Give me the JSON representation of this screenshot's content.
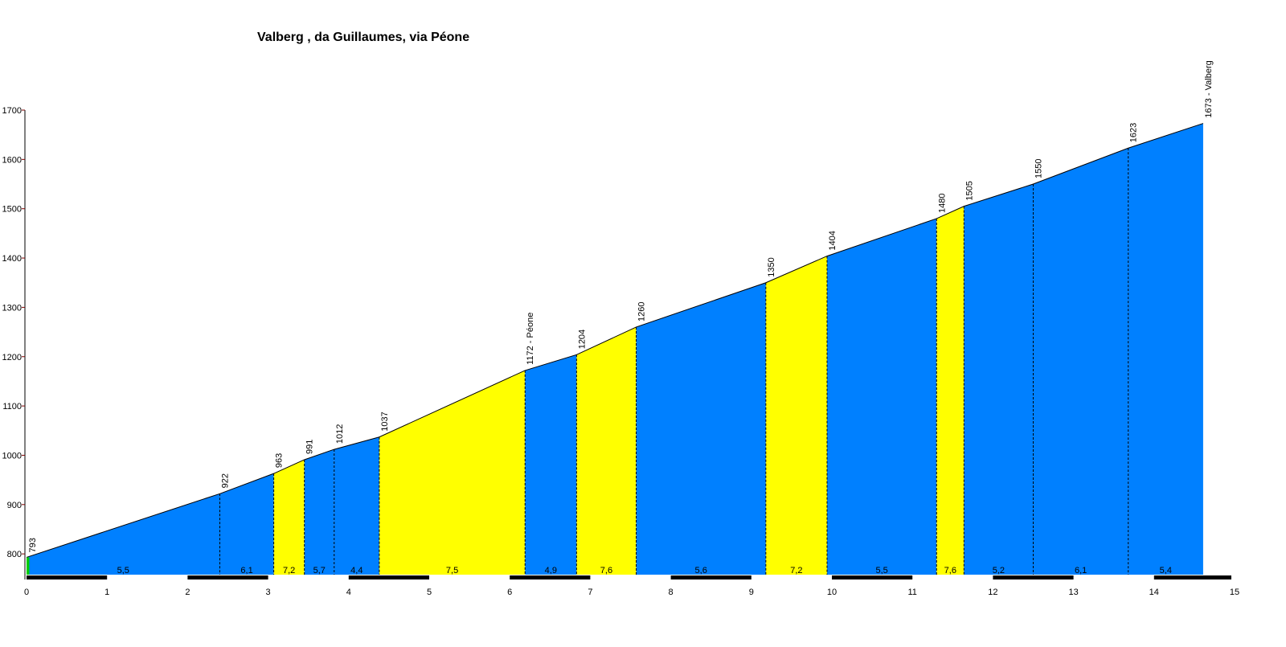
{
  "chart_data": {
    "type": "area",
    "title": "Valberg , da Guillaumes, via Péone",
    "xlabel": "",
    "ylabel": "",
    "xlim": [
      0,
      15
    ],
    "ylim": [
      750,
      1700
    ],
    "x_ticks": [
      0,
      1,
      2,
      3,
      4,
      5,
      6,
      7,
      8,
      9,
      10,
      11,
      12,
      13,
      14,
      15
    ],
    "y_ticks": [
      800,
      900,
      1000,
      1100,
      1200,
      1300,
      1400,
      1500,
      1600,
      1700
    ],
    "start": {
      "x": 0,
      "elevation": 793,
      "label": "793"
    },
    "points": [
      {
        "x": 0,
        "elevation": 793
      },
      {
        "x": 2.4,
        "elevation": 922
      },
      {
        "x": 3.07,
        "elevation": 963
      },
      {
        "x": 3.45,
        "elevation": 991
      },
      {
        "x": 3.82,
        "elevation": 1012
      },
      {
        "x": 4.38,
        "elevation": 1037
      },
      {
        "x": 6.19,
        "elevation": 1172
      },
      {
        "x": 6.83,
        "elevation": 1204
      },
      {
        "x": 7.57,
        "elevation": 1260
      },
      {
        "x": 9.18,
        "elevation": 1350
      },
      {
        "x": 9.94,
        "elevation": 1404
      },
      {
        "x": 11.3,
        "elevation": 1480
      },
      {
        "x": 11.64,
        "elevation": 1505
      },
      {
        "x": 12.5,
        "elevation": 1550
      },
      {
        "x": 13.68,
        "elevation": 1623
      },
      {
        "x": 14.61,
        "elevation": 1673
      }
    ],
    "waypoint_labels": [
      "922",
      "963",
      "991",
      "1012",
      "1037",
      "1172 - Péone",
      "1204",
      "1260",
      "1350",
      "1404",
      "1480",
      "1505",
      "1550",
      "1623",
      "1673 - Valberg"
    ],
    "segments": [
      {
        "grade": "5,5",
        "color": "#0080ff"
      },
      {
        "grade": "6,1",
        "color": "#0080ff"
      },
      {
        "grade": "7,2",
        "color": "#ffff00"
      },
      {
        "grade": "5,7",
        "color": "#0080ff"
      },
      {
        "grade": "4,4",
        "color": "#0080ff"
      },
      {
        "grade": "7,5",
        "color": "#ffff00"
      },
      {
        "grade": "4,9",
        "color": "#0080ff"
      },
      {
        "grade": "7,6",
        "color": "#ffff00"
      },
      {
        "grade": "5,6",
        "color": "#0080ff"
      },
      {
        "grade": "7,2",
        "color": "#ffff00"
      },
      {
        "grade": "5,5",
        "color": "#0080ff"
      },
      {
        "grade": "7,6",
        "color": "#ffff00"
      },
      {
        "grade": "5,2",
        "color": "#0080ff"
      },
      {
        "grade": "6,1",
        "color": "#0080ff"
      },
      {
        "grade": "5,4",
        "color": "#0080ff"
      }
    ],
    "colors": {
      "start_marker": "#00cc00",
      "tick_marks": "#800000",
      "axis": "#000000"
    },
    "grid": false,
    "legend": "none"
  }
}
